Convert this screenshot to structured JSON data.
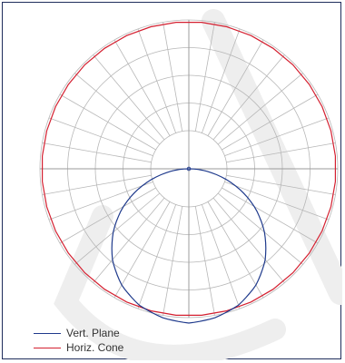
{
  "chart_data": {
    "type": "polar",
    "title": "",
    "grid": true,
    "radial_rings": 4,
    "angular_divisions": 36,
    "legend_position": "bottom-left",
    "series": [
      {
        "name": "Vert. Plane",
        "color": "#1f3a8c",
        "shape": "downward lobe",
        "angles_deg": [
          0,
          10,
          20,
          30,
          40,
          50,
          60,
          70,
          80,
          90
        ],
        "values": [
          1.0,
          0.98,
          0.94,
          0.87,
          0.77,
          0.64,
          0.49,
          0.32,
          0.15,
          0.0
        ]
      },
      {
        "name": "Horiz. Cone",
        "color": "#d42030",
        "shape": "near-circle",
        "angles_deg": [
          0,
          360
        ],
        "values": [
          1.0,
          1.0
        ]
      }
    ]
  },
  "legend": {
    "items": [
      {
        "label": "Vert. Plane",
        "color": "#1f3a8c"
      },
      {
        "label": "Horiz. Cone",
        "color": "#d42030"
      }
    ]
  },
  "watermark": {
    "color": "#eeeeee"
  }
}
